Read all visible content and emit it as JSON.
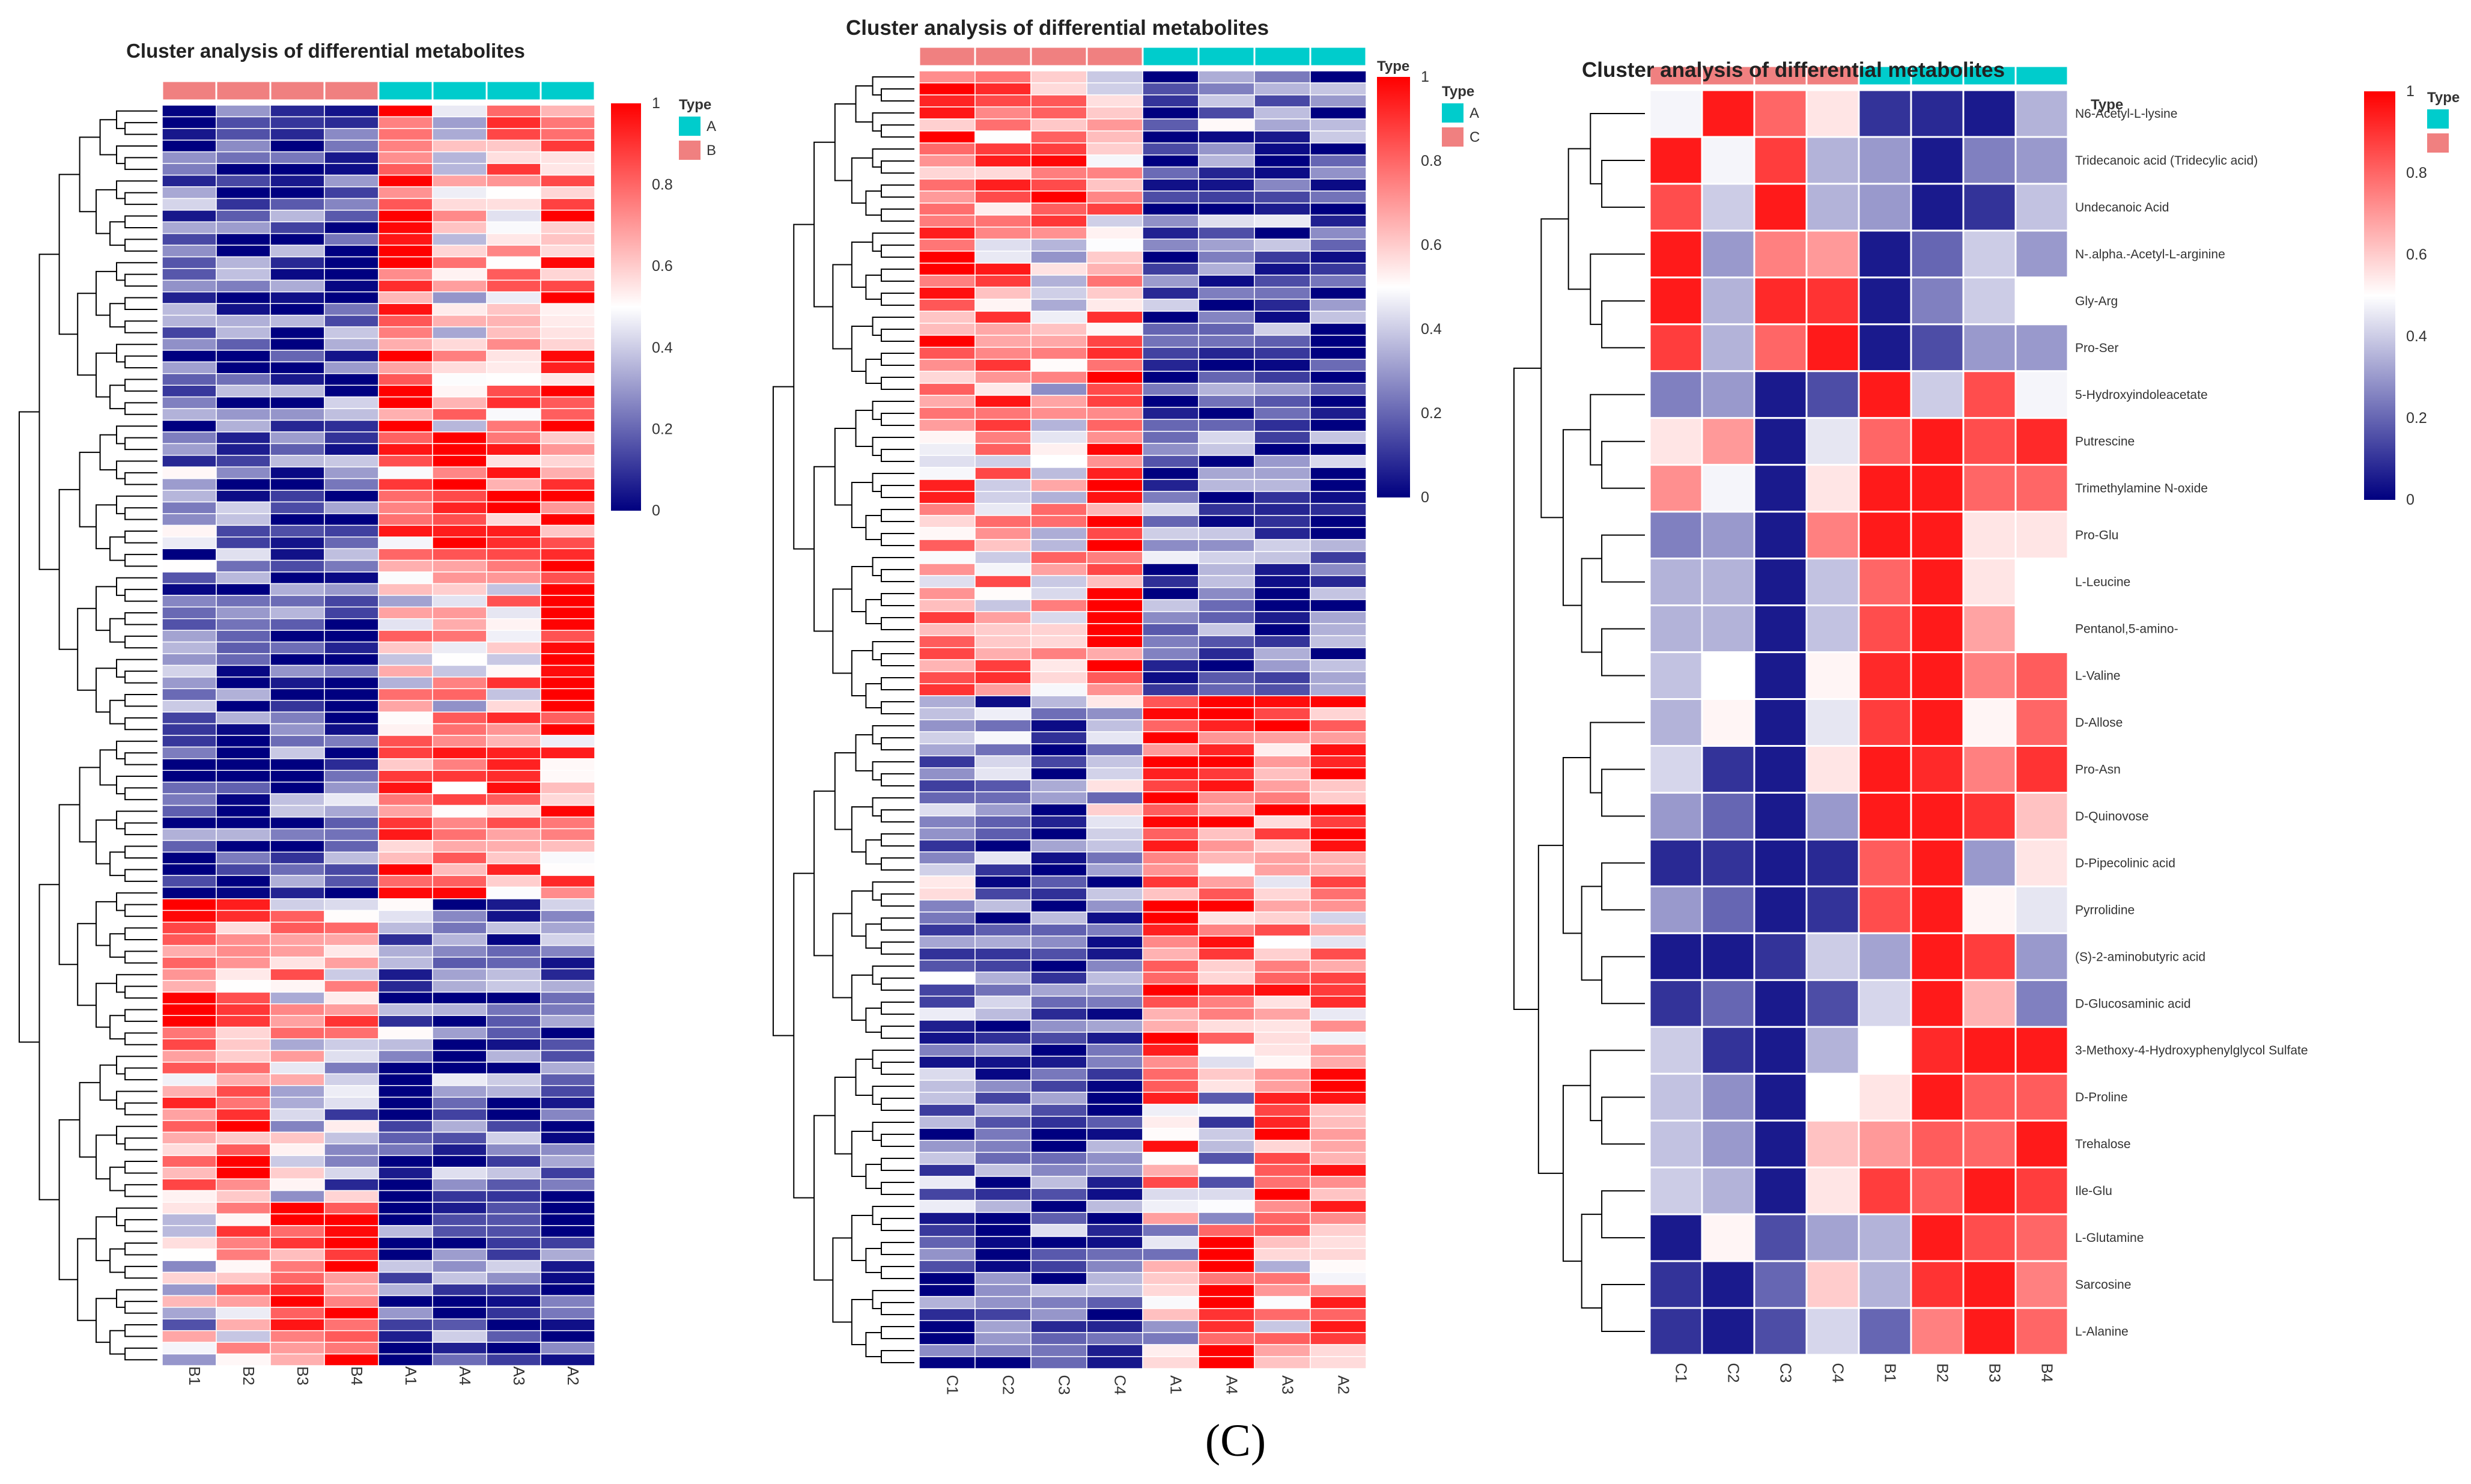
{
  "caption": "(C)",
  "chart_data": [
    {
      "type": "heatmap",
      "title": "Cluster analysis of differential metabolites",
      "columns": [
        "B1",
        "B2",
        "B3",
        "B4",
        "A1",
        "A4",
        "A3",
        "A2"
      ],
      "column_groups": [
        "B",
        "B",
        "B",
        "B",
        "A",
        "A",
        "A",
        "A"
      ],
      "n_rows": 108,
      "row_labels": [],
      "value_range": [
        0,
        1
      ],
      "colorbar_ticks": [
        "1",
        "0.8",
        "0.6",
        "0.4",
        "0.2",
        "0"
      ],
      "legend": {
        "title": "Type",
        "entries": [
          {
            "name": "A",
            "color": "#00cccc"
          },
          {
            "name": "B",
            "color": "#f08080"
          }
        ]
      },
      "type_row_label": "",
      "blocks": [
        {
          "rows": [
            0,
            28
          ],
          "means": [
            0.15,
            0.12,
            0.1,
            0.15,
            0.9,
            0.55,
            0.7,
            0.8
          ]
        },
        {
          "rows": [
            28,
            40
          ],
          "means": [
            0.25,
            0.2,
            0.12,
            0.2,
            0.7,
            0.95,
            0.8,
            0.85
          ]
        },
        {
          "rows": [
            40,
            54
          ],
          "means": [
            0.18,
            0.15,
            0.1,
            0.12,
            0.55,
            0.55,
            0.65,
            0.95
          ]
        },
        {
          "rows": [
            54,
            68
          ],
          "means": [
            0.15,
            0.12,
            0.18,
            0.2,
            0.82,
            0.72,
            0.75,
            0.72
          ]
        },
        {
          "rows": [
            68,
            82
          ],
          "means": [
            0.9,
            0.7,
            0.6,
            0.65,
            0.25,
            0.12,
            0.15,
            0.15
          ]
        },
        {
          "rows": [
            82,
            94
          ],
          "means": [
            0.7,
            0.85,
            0.5,
            0.35,
            0.12,
            0.2,
            0.15,
            0.1
          ]
        },
        {
          "rows": [
            94,
            108
          ],
          "means": [
            0.4,
            0.65,
            0.9,
            0.92,
            0.12,
            0.15,
            0.15,
            0.1
          ]
        }
      ]
    },
    {
      "type": "heatmap",
      "title": "Cluster analysis of differential metabolites",
      "columns": [
        "C1",
        "C2",
        "C3",
        "C4",
        "A1",
        "A4",
        "A3",
        "A2"
      ],
      "column_groups": [
        "C",
        "C",
        "C",
        "C",
        "A",
        "A",
        "A",
        "A"
      ],
      "n_rows": 108,
      "row_labels": [],
      "value_range": [
        0,
        1
      ],
      "colorbar_ticks": [
        "1",
        "0.8",
        "0.6",
        "0.4",
        "0.2",
        "0"
      ],
      "legend": {
        "title": "Type",
        "entries": [
          {
            "name": "A",
            "color": "#00cccc"
          },
          {
            "name": "C",
            "color": "#f08080"
          }
        ]
      },
      "type_row_label": "Type",
      "blocks": [
        {
          "rows": [
            0,
            14
          ],
          "means": [
            0.85,
            0.75,
            0.8,
            0.65,
            0.15,
            0.25,
            0.2,
            0.15
          ]
        },
        {
          "rows": [
            14,
            30
          ],
          "means": [
            0.85,
            0.7,
            0.55,
            0.75,
            0.15,
            0.12,
            0.18,
            0.12
          ]
        },
        {
          "rows": [
            30,
            52
          ],
          "means": [
            0.7,
            0.65,
            0.55,
            0.9,
            0.2,
            0.15,
            0.15,
            0.15
          ]
        },
        {
          "rows": [
            52,
            66
          ],
          "means": [
            0.3,
            0.25,
            0.1,
            0.35,
            0.92,
            0.85,
            0.8,
            0.85
          ]
        },
        {
          "rows": [
            66,
            82
          ],
          "means": [
            0.3,
            0.2,
            0.1,
            0.25,
            0.85,
            0.75,
            0.7,
            0.65
          ]
        },
        {
          "rows": [
            82,
            96
          ],
          "means": [
            0.2,
            0.15,
            0.12,
            0.15,
            0.7,
            0.35,
            0.75,
            0.8
          ]
        },
        {
          "rows": [
            96,
            108
          ],
          "means": [
            0.15,
            0.12,
            0.2,
            0.18,
            0.4,
            0.9,
            0.6,
            0.75
          ]
        }
      ]
    },
    {
      "type": "heatmap",
      "title": "Cluster analysis of differential metabolites",
      "columns": [
        "C1",
        "C2",
        "C3",
        "C4",
        "B1",
        "B2",
        "B3",
        "B4"
      ],
      "column_groups": [
        "C",
        "C",
        "C",
        "C",
        "B",
        "B",
        "B",
        "B"
      ],
      "n_rows": 27,
      "row_labels": [
        "N6-Acetyl-L-lysine",
        "Tridecanoic acid (Tridecylic acid)",
        "Undecanoic Acid",
        "N-.alpha.-Acetyl-L-arginine",
        "Gly-Arg",
        "Pro-Ser",
        "5-Hydroxyindoleacetate",
        "Putrescine",
        "Trimethylamine N-oxide",
        "Pro-Glu",
        "L-Leucine",
        "Pentanol,5-amino-",
        "L-Valine",
        "D-Allose",
        "Pro-Asn",
        "D-Quinovose",
        "D-Pipecolinic acid",
        "Pyrrolidine",
        "(S)-2-aminobutyric acid",
        "D-Glucosaminic acid",
        "3-Methoxy-4-Hydroxyphenylglycol Sulfate",
        "D-Proline",
        "Trehalose",
        "Ile-Glu",
        "L-Glutamine",
        "Sarcosine",
        "L-Alanine"
      ],
      "values": [
        [
          0.48,
          0.95,
          0.8,
          0.55,
          0.1,
          0.08,
          0.05,
          0.35
        ],
        [
          0.95,
          0.48,
          0.88,
          0.35,
          0.3,
          0.05,
          0.25,
          0.3
        ],
        [
          0.85,
          0.4,
          0.95,
          0.35,
          0.3,
          0.05,
          0.1,
          0.38
        ],
        [
          0.95,
          0.3,
          0.75,
          0.7,
          0.05,
          0.2,
          0.4,
          0.3
        ],
        [
          0.95,
          0.35,
          0.92,
          0.9,
          0.05,
          0.25,
          0.4,
          0.5
        ],
        [
          0.88,
          0.35,
          0.8,
          0.95,
          0.05,
          0.15,
          0.3,
          0.3
        ],
        [
          0.25,
          0.3,
          0.05,
          0.15,
          0.95,
          0.4,
          0.85,
          0.48
        ],
        [
          0.55,
          0.7,
          0.05,
          0.45,
          0.8,
          0.95,
          0.85,
          0.92
        ],
        [
          0.72,
          0.48,
          0.05,
          0.55,
          0.95,
          0.95,
          0.8,
          0.8
        ],
        [
          0.25,
          0.3,
          0.05,
          0.75,
          0.95,
          0.95,
          0.55,
          0.55
        ],
        [
          0.35,
          0.35,
          0.05,
          0.38,
          0.8,
          0.95,
          0.55,
          0.5
        ],
        [
          0.35,
          0.35,
          0.05,
          0.38,
          0.85,
          0.95,
          0.68,
          0.5
        ],
        [
          0.38,
          0.5,
          0.05,
          0.52,
          0.92,
          0.95,
          0.75,
          0.82
        ],
        [
          0.35,
          0.52,
          0.05,
          0.45,
          0.88,
          0.95,
          0.52,
          0.8
        ],
        [
          0.42,
          0.1,
          0.05,
          0.55,
          0.95,
          0.92,
          0.75,
          0.9
        ],
        [
          0.3,
          0.2,
          0.05,
          0.3,
          0.95,
          0.95,
          0.9,
          0.62
        ],
        [
          0.08,
          0.1,
          0.05,
          0.08,
          0.82,
          0.95,
          0.3,
          0.55
        ],
        [
          0.3,
          0.2,
          0.05,
          0.1,
          0.85,
          0.95,
          0.52,
          0.45
        ],
        [
          0.05,
          0.05,
          0.1,
          0.4,
          0.32,
          0.95,
          0.88,
          0.3
        ],
        [
          0.1,
          0.2,
          0.05,
          0.15,
          0.42,
          0.95,
          0.65,
          0.25
        ],
        [
          0.4,
          0.1,
          0.05,
          0.35,
          0.5,
          0.92,
          0.95,
          0.95
        ],
        [
          0.38,
          0.28,
          0.05,
          0.5,
          0.55,
          0.95,
          0.82,
          0.82
        ],
        [
          0.38,
          0.3,
          0.05,
          0.62,
          0.7,
          0.82,
          0.8,
          0.95
        ],
        [
          0.4,
          0.35,
          0.05,
          0.55,
          0.88,
          0.82,
          0.95,
          0.88
        ],
        [
          0.05,
          0.52,
          0.15,
          0.32,
          0.35,
          0.95,
          0.85,
          0.8
        ],
        [
          0.1,
          0.05,
          0.2,
          0.6,
          0.35,
          0.9,
          0.95,
          0.75
        ],
        [
          0.1,
          0.05,
          0.15,
          0.42,
          0.2,
          0.75,
          0.95,
          0.8
        ]
      ],
      "value_range": [
        0,
        1
      ],
      "colorbar_ticks": [
        "1",
        "0.8",
        "0.6",
        "0.4",
        "0.2",
        "0"
      ],
      "legend": {
        "title": "Type",
        "entries": [
          {
            "name": "",
            "color": "#00cccc"
          },
          {
            "name": "",
            "color": "#f08080"
          }
        ]
      },
      "type_row_label": "Type"
    }
  ]
}
